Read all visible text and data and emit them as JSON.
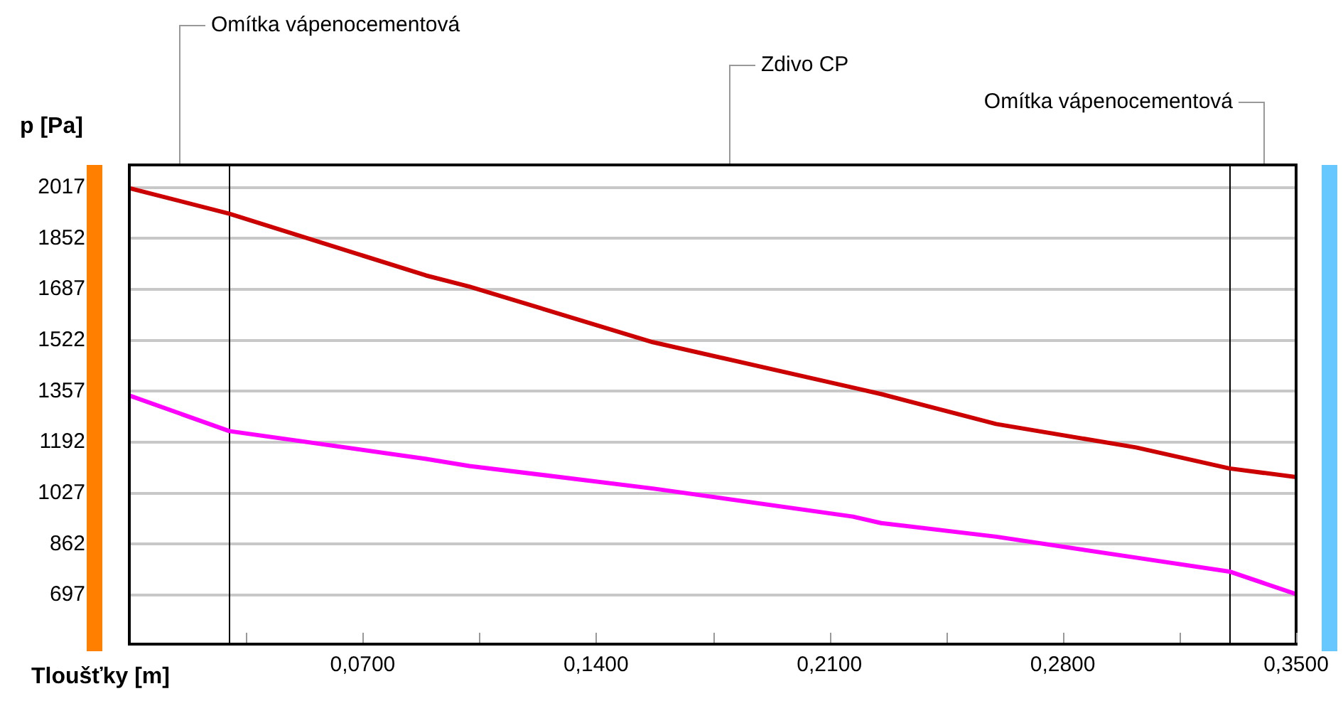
{
  "chart_data": {
    "type": "line",
    "xlabel": "Tloušťky [m]",
    "ylabel": "p [Pa]",
    "xlim": [
      0,
      0.35
    ],
    "ylim": [
      538,
      2090
    ],
    "xticks": [
      {
        "value": 0.035,
        "label": null
      },
      {
        "value": 0.07,
        "label": "0,0700"
      },
      {
        "value": 0.105,
        "label": null
      },
      {
        "value": 0.14,
        "label": "0,1400"
      },
      {
        "value": 0.175,
        "label": null
      },
      {
        "value": 0.21,
        "label": "0,2100"
      },
      {
        "value": 0.245,
        "label": null
      },
      {
        "value": 0.28,
        "label": "0,2800"
      },
      {
        "value": 0.315,
        "label": null
      },
      {
        "value": 0.35,
        "label": "0,3500"
      }
    ],
    "yticks": [
      697,
      862,
      1027,
      1192,
      1357,
      1522,
      1687,
      1852,
      2017
    ],
    "grid": "y",
    "legend": false,
    "marker": "none",
    "line_style": "solid",
    "series": [
      {
        "color": "#cc0000",
        "x": [
          0,
          0.03,
          0.089,
          0.102,
          0.157,
          0.217,
          0.2255,
          0.26,
          0.302,
          0.33,
          0.35
        ],
        "values": [
          2015,
          1932,
          1732,
          1696,
          1516,
          1369,
          1348,
          1251,
          1175,
          1107,
          1079
        ]
      },
      {
        "color": "#ff00ff",
        "x": [
          0,
          0.03,
          0.089,
          0.102,
          0.157,
          0.217,
          0.2255,
          0.26,
          0.302,
          0.33,
          0.35
        ],
        "values": [
          1343,
          1228,
          1138,
          1115,
          1042,
          951,
          930,
          886,
          818,
          773,
          700
        ]
      }
    ],
    "ref_lines": [
      {
        "axis": "x",
        "value": 0.03,
        "color": "#000000"
      },
      {
        "axis": "x",
        "value": 0.33,
        "color": "#000000"
      }
    ],
    "annotations": [
      "Omítka vápenocementová",
      "Zdivo CP",
      "Omítka vápenocementová"
    ]
  }
}
